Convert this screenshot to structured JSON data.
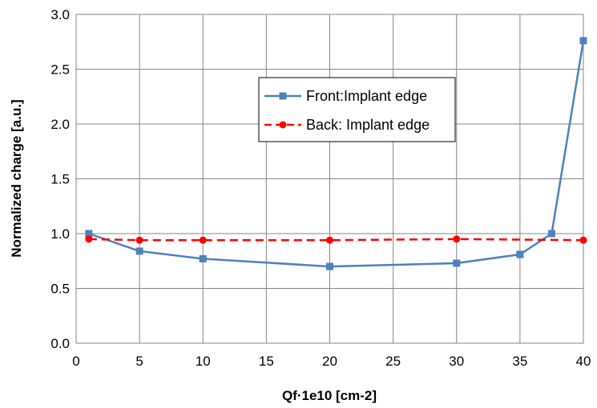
{
  "chart_data": {
    "type": "line",
    "title": "",
    "xlabel": "Qf·1e10 [cm-2]",
    "ylabel": "Normalized charge [a.u.]",
    "xlim": [
      0,
      40
    ],
    "ylim": [
      0,
      3.0
    ],
    "x_ticks": [
      "0",
      "5",
      "10",
      "15",
      "20",
      "25",
      "30",
      "35",
      "40"
    ],
    "y_ticks": [
      "0.0",
      "0.5",
      "1.0",
      "1.5",
      "2.0",
      "2.5",
      "3.0"
    ],
    "grid": true,
    "legend_position": "top-right inside",
    "series": [
      {
        "name": "Front:Implant edge",
        "color": "#4f81bd",
        "line_style": "solid",
        "marker": "square",
        "x": [
          1,
          5,
          10,
          20,
          30,
          35,
          37.5,
          40
        ],
        "y": [
          1.0,
          0.84,
          0.77,
          0.7,
          0.73,
          0.81,
          1.0,
          2.76
        ]
      },
      {
        "name": "Back: Implant edge",
        "color": "#ff0000",
        "line_style": "dashed",
        "marker": "circle",
        "x": [
          1,
          5,
          10,
          20,
          30,
          40
        ],
        "y": [
          0.95,
          0.94,
          0.94,
          0.94,
          0.95,
          0.94
        ]
      }
    ]
  }
}
